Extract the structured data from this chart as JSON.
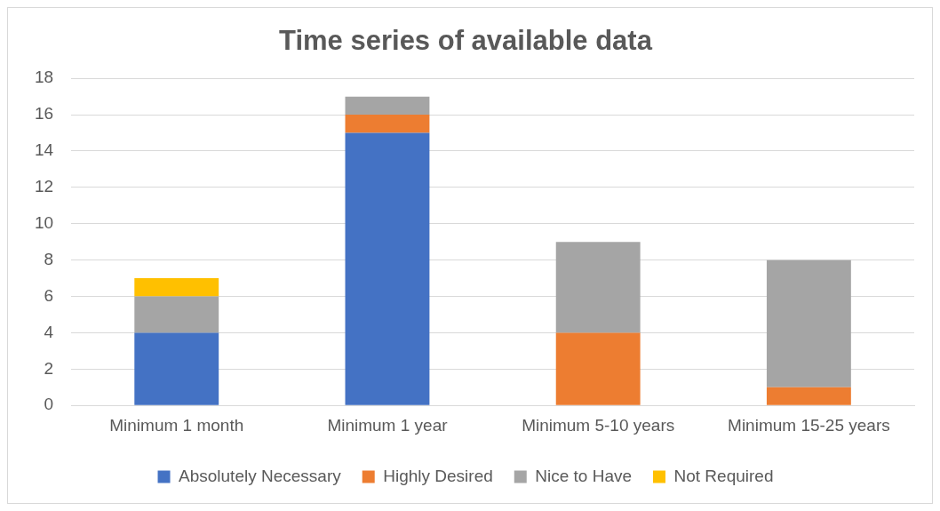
{
  "chart_data": {
    "type": "bar",
    "title": "Time series of available data",
    "stacked": true,
    "categories": [
      "Minimum 1 month",
      "Minimum 1 year",
      "Minimum 5-10 years",
      "Minimum 15-25 years"
    ],
    "series": [
      {
        "name": "Absolutely Necessary",
        "color": "#4472c4",
        "values": [
          4,
          15,
          0,
          0
        ]
      },
      {
        "name": "Highly Desired",
        "color": "#ed7d31",
        "values": [
          0,
          1,
          4,
          1
        ]
      },
      {
        "name": "Nice to Have",
        "color": "#a5a5a5",
        "values": [
          2,
          1,
          5,
          7
        ]
      },
      {
        "name": "Not Required",
        "color": "#ffc000",
        "values": [
          1,
          0,
          0,
          0
        ]
      }
    ],
    "ylim": [
      0,
      18
    ],
    "yticks": [
      0,
      2,
      4,
      6,
      8,
      10,
      12,
      14,
      16,
      18
    ],
    "grid": "y",
    "legend": "bottom"
  }
}
